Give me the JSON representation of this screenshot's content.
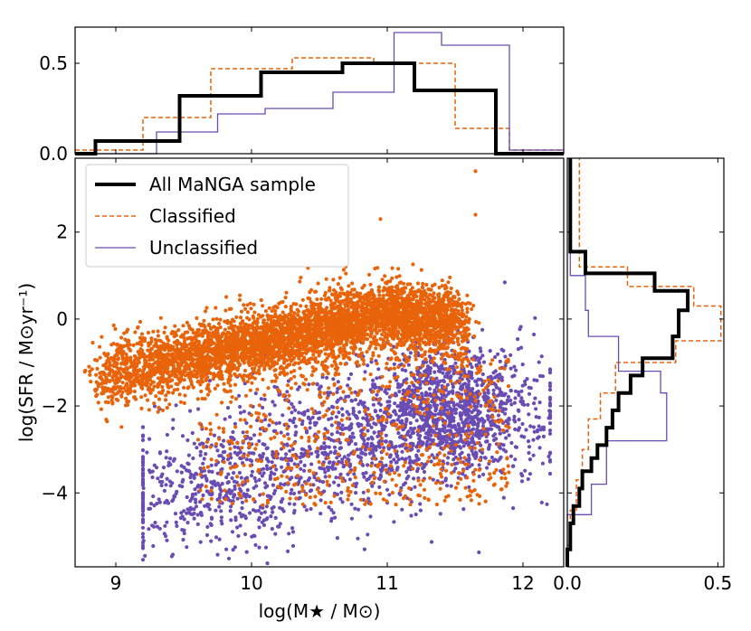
{
  "chart_data": [
    {
      "panel": "main",
      "type": "scatter",
      "xlabel": "log(M★ / M⊙)",
      "ylabel": "log(SFR / M⊙yr⁻¹)",
      "xlim": [
        8.7,
        12.3
      ],
      "ylim": [
        -5.7,
        3.7
      ],
      "xticks": [
        9,
        10,
        11,
        12
      ],
      "yticks": [
        -4,
        -2,
        0,
        2
      ],
      "series": [
        {
          "name": "Classified",
          "color": "#e8630a",
          "n_points": 5200,
          "description_hint": "star-forming main sequence, log SFR roughly -1.2 at 9.0 rising to +0.6 at 11.3, plus scattered points down to -5"
        },
        {
          "name": "Unclassified",
          "color": "#6a4cb5",
          "n_points": 2400,
          "description_hint": "quenched population, log SFR -5 to -1 across 9.2 to 12.2, concentrated near 11.5, -2"
        }
      ],
      "legend": {
        "location": "upper-left",
        "entries": [
          {
            "label": "All MaNGA sample",
            "style": "solid-thick",
            "color": "#000000"
          },
          {
            "label": "Classified",
            "style": "dashed",
            "color": "#e8630a"
          },
          {
            "label": "Unclassified",
            "style": "solid-thin",
            "color": "#6a4cb5"
          }
        ]
      }
    },
    {
      "panel": "top",
      "type": "histogram-step",
      "xlim": [
        8.7,
        12.3
      ],
      "ylim": [
        0,
        0.7
      ],
      "yticks": [
        0.0,
        0.5
      ],
      "series": [
        {
          "name": "All MaNGA sample",
          "color": "#000000",
          "edges": [
            8.7,
            8.85,
            9.47,
            10.07,
            10.67,
            11.2,
            11.8,
            12.3
          ],
          "values": [
            0.0,
            0.07,
            0.32,
            0.45,
            0.5,
            0.35,
            0.0
          ]
        },
        {
          "name": "Classified",
          "color": "#e8630a",
          "edges": [
            8.7,
            9.2,
            9.7,
            10.3,
            10.9,
            11.5,
            11.9,
            12.3
          ],
          "values": [
            0.02,
            0.2,
            0.47,
            0.53,
            0.5,
            0.14,
            0.02
          ]
        },
        {
          "name": "Unclassified",
          "color": "#6a4cb5",
          "edges": [
            8.7,
            9.3,
            9.75,
            10.1,
            10.6,
            11.05,
            11.4,
            11.9,
            12.3
          ],
          "values": [
            0.0,
            0.12,
            0.22,
            0.25,
            0.34,
            0.67,
            0.6,
            0.02
          ]
        }
      ]
    },
    {
      "panel": "right",
      "type": "histogram-step-horizontal",
      "xlim": [
        0,
        0.52
      ],
      "xticks": [
        0.0,
        0.5
      ],
      "ylim": [
        -5.7,
        3.7
      ],
      "series": [
        {
          "name": "All MaNGA sample",
          "color": "#000000",
          "edges": [
            -5.7,
            -5.3,
            -4.7,
            -4.3,
            -3.9,
            -3.5,
            -3.2,
            -2.9,
            -2.5,
            -2.1,
            -1.7,
            -1.3,
            -0.9,
            -0.4,
            0.2,
            0.65,
            1.05,
            1.55,
            3.7
          ],
          "values": [
            0.0,
            0.01,
            0.02,
            0.04,
            0.05,
            0.08,
            0.1,
            0.13,
            0.15,
            0.17,
            0.21,
            0.25,
            0.35,
            0.37,
            0.4,
            0.29,
            0.06,
            0.01
          ]
        },
        {
          "name": "Classified",
          "color": "#e8630a",
          "edges": [
            -5.7,
            -5.2,
            -4.4,
            -3.7,
            -3.0,
            -2.3,
            -1.7,
            -1.0,
            -0.5,
            0.3,
            0.75,
            1.2,
            3.7
          ],
          "values": [
            0.0,
            0.01,
            0.03,
            0.05,
            0.07,
            0.11,
            0.16,
            0.36,
            0.51,
            0.42,
            0.2,
            0.04
          ]
        },
        {
          "name": "Unclassified",
          "color": "#6a4cb5",
          "edges": [
            -5.7,
            -4.5,
            -3.8,
            -2.8,
            -1.7,
            -1.2,
            -0.4,
            0.2,
            1.0,
            3.7
          ],
          "values": [
            0.0,
            0.08,
            0.13,
            0.33,
            0.31,
            0.17,
            0.07,
            0.06,
            0.01
          ]
        }
      ]
    }
  ]
}
